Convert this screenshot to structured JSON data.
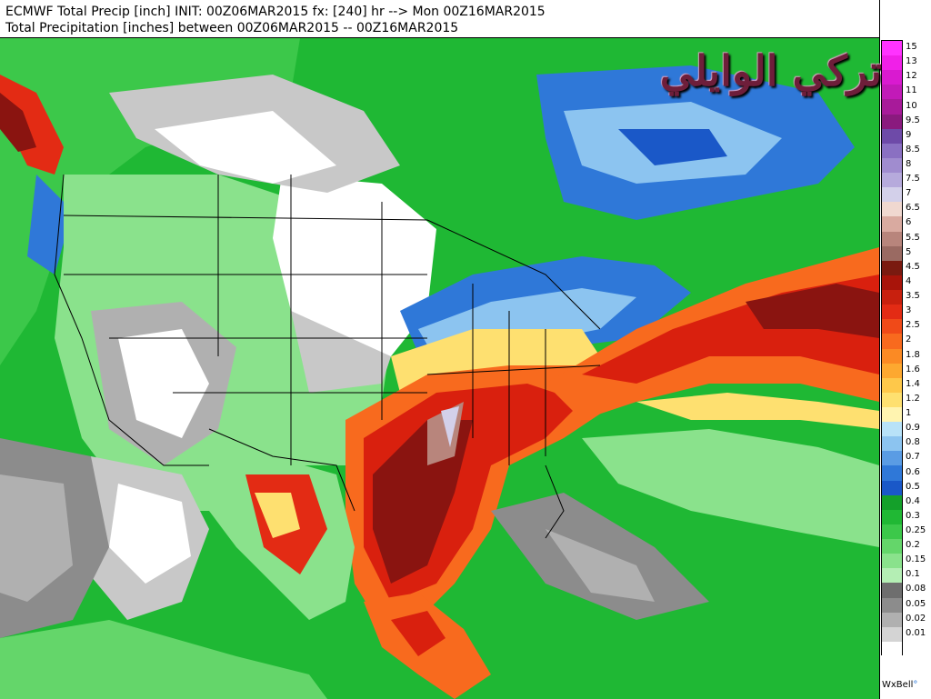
{
  "header": {
    "line1": "ECMWF Total Precip [inch] INIT: 00Z06MAR2015 fx: [240] hr --> Mon 00Z16MAR2015",
    "line2": "Total Precipitation [inches] between 00Z06MAR2015 -- 00Z16MAR2015"
  },
  "legend": {
    "entries": [
      {
        "label": "15",
        "color": "#ff33ff"
      },
      {
        "label": "13",
        "color": "#f020e8"
      },
      {
        "label": "12",
        "color": "#d91ad0"
      },
      {
        "label": "11",
        "color": "#c21ab8"
      },
      {
        "label": "10",
        "color": "#a81a9a"
      },
      {
        "label": "9.5",
        "color": "#8a1a7e"
      },
      {
        "label": "9",
        "color": "#6e4aa8"
      },
      {
        "label": "8.5",
        "color": "#8a70c2"
      },
      {
        "label": "8",
        "color": "#a08ccf"
      },
      {
        "label": "7.5",
        "color": "#b6aadc"
      },
      {
        "label": "7",
        "color": "#d3d0ea"
      },
      {
        "label": "6.5",
        "color": "#f0d8d0"
      },
      {
        "label": "6",
        "color": "#d9aaa0"
      },
      {
        "label": "5.5",
        "color": "#b8857c"
      },
      {
        "label": "5",
        "color": "#9a6a62"
      },
      {
        "label": "4.5",
        "color": "#7a1a10"
      },
      {
        "label": "4",
        "color": "#a8140a"
      },
      {
        "label": "3.5",
        "color": "#c8200e"
      },
      {
        "label": "3",
        "color": "#e32b14"
      },
      {
        "label": "2.5",
        "color": "#f04a18"
      },
      {
        "label": "2",
        "color": "#f86a1e"
      },
      {
        "label": "1.8",
        "color": "#fb8a24"
      },
      {
        "label": "1.6",
        "color": "#fda830"
      },
      {
        "label": "1.4",
        "color": "#fec84a"
      },
      {
        "label": "1.2",
        "color": "#fee070"
      },
      {
        "label": "1",
        "color": "#fff4b0"
      },
      {
        "label": "0.9",
        "color": "#b8e2f8"
      },
      {
        "label": "0.8",
        "color": "#8cc4f0"
      },
      {
        "label": "0.7",
        "color": "#5a9ce4"
      },
      {
        "label": "0.6",
        "color": "#2f78d8"
      },
      {
        "label": "0.5",
        "color": "#1a58c8"
      },
      {
        "label": "0.4",
        "color": "#14a02a"
      },
      {
        "label": "0.3",
        "color": "#20b834"
      },
      {
        "label": "0.25",
        "color": "#3cc84a"
      },
      {
        "label": "0.2",
        "color": "#64d66a"
      },
      {
        "label": "0.15",
        "color": "#8ae28c"
      },
      {
        "label": "0.1",
        "color": "#b4eeb4"
      },
      {
        "label": "0.08",
        "color": "#6e6e6e"
      },
      {
        "label": "0.05",
        "color": "#8c8c8c"
      },
      {
        "label": "0.02",
        "color": "#b0b0b0"
      },
      {
        "label": "0.01",
        "color": "#d4d4d4"
      },
      {
        "label": "",
        "color": "#ffffff"
      }
    ]
  },
  "watermark": "تركي الوايلي",
  "brand": {
    "text": "WxBell",
    "dot": "°"
  },
  "map_colors": {
    "ocean_green": "#1fb834",
    "dry_white": "#ffffff",
    "light_gray": "#c8c8c8",
    "mid_gray": "#8c8c8c",
    "light_green": "#8ae28c",
    "blue": "#2f78d8",
    "light_blue": "#8cc4f0",
    "yellow": "#fee070",
    "orange": "#f86a1e",
    "red": "#d9200e",
    "dark_red": "#8a1410",
    "mauve": "#b8857c"
  }
}
